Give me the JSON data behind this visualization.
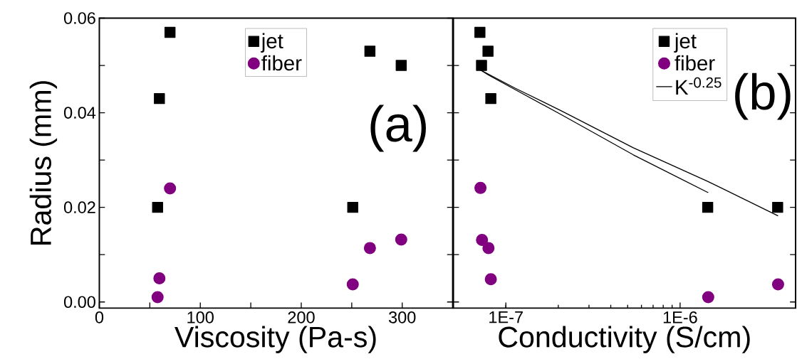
{
  "chart_data": [
    {
      "type": "scatter",
      "xlabel": "Viscosity (Pa-s)",
      "ylabel": "Radius (mm)",
      "xlim": [
        0,
        350
      ],
      "ylim": [
        -0.0013,
        0.06
      ],
      "xticks": [
        0,
        {
          "value": 50,
          "label": null
        },
        100,
        {
          "value": 150,
          "label": null
        },
        200,
        {
          "value": 250,
          "label": null
        },
        300
      ],
      "yticks": [
        {
          "value": 0,
          "label": "0.00"
        },
        {
          "value": 0.01,
          "label": null
        },
        0.02,
        {
          "value": 0.03,
          "label": null
        },
        0.04,
        {
          "value": 0.05,
          "label": null
        },
        0.06
      ],
      "legend": "top",
      "annotations": [
        "(a)"
      ],
      "series": [
        {
          "name": "jet",
          "color": "#000000",
          "marker": "square",
          "x": [
            70,
            59.5,
            57.7,
            251,
            268,
            299
          ],
          "values": [
            0.057,
            0.043,
            0.02,
            0.02,
            0.053,
            0.05
          ]
        },
        {
          "name": "fiber",
          "color": "#800080",
          "marker": "circle",
          "x": [
            70,
            59.5,
            57.7,
            251,
            268,
            299
          ],
          "values": [
            0.024,
            0.005,
            0.001,
            0.0037,
            0.0114,
            0.0132
          ]
        }
      ]
    },
    {
      "type": "scatter",
      "xlabel": "Conductivity (S/cm)",
      "log": "x",
      "xlim": [
        5e-08,
        4.6e-06
      ],
      "ylim": [
        -0.0013,
        0.06
      ],
      "xticks": [
        {
          "value": 1e-07,
          "label": "1E-7"
        },
        {
          "value": 1e-06,
          "label": "1E-6"
        }
      ],
      "yticks": [
        0.0,
        0.01,
        0.02,
        0.03,
        0.04,
        0.05
      ],
      "tick_labels": "x",
      "legend": "top right",
      "annotations": [
        "(b)"
      ],
      "series": [
        {
          "name": "jet",
          "color": "#000000",
          "marker": "square",
          "x": [
            7.1e-08,
            7.9e-08,
            7.25e-08,
            8.2e-08,
            1.44e-06,
            3.63e-06
          ],
          "values": [
            0.057,
            0.053,
            0.05,
            0.043,
            0.02,
            0.02
          ]
        },
        {
          "name": "fiber",
          "color": "#800080",
          "marker": "circle",
          "x": [
            7.15e-08,
            7.3e-08,
            7.95e-08,
            8.2e-08,
            1.45e-06,
            3.65e-06
          ],
          "values": [
            0.0241,
            0.0131,
            0.0114,
            0.0048,
            0.001,
            0.0037
          ]
        },
        {
          "name": "K$^{-0.25}$",
          "type": "line",
          "color": "#000000",
          "marker": "none",
          "line_style": "solid",
          "x": [
            7.1e-08,
            7.94e-08,
            1.13e-07,
            2.08e-07,
            5.39e-07,
            1.45e-06
          ],
          "values": [
            0.0491,
            0.048,
            0.0449,
            0.0396,
            0.0311,
            0.0231
          ]
        },
        {
          "type": "line",
          "color": "#000000",
          "marker": "none",
          "line_style": "solid",
          "x": [
            7.1e-08,
            1.13e-07,
            2.08e-07,
            5.39e-07,
            1.44e-06,
            3.65e-06
          ],
          "values": [
            0.0491,
            0.0452,
            0.0404,
            0.0326,
            0.0255,
            0.0182
          ]
        }
      ]
    }
  ]
}
